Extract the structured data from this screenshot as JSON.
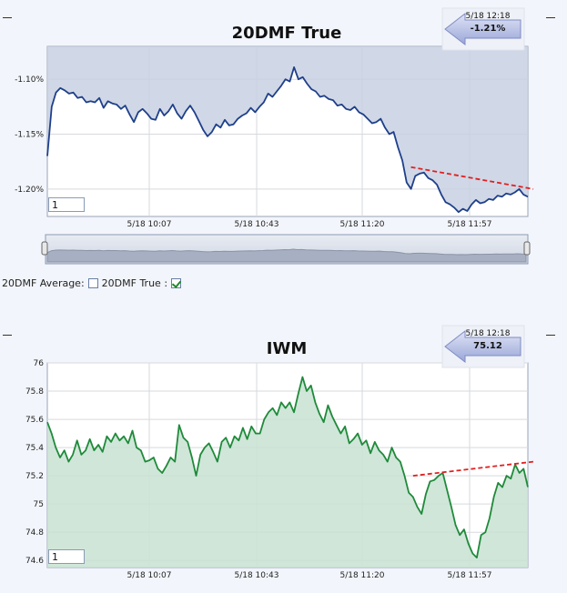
{
  "legend": {
    "average_label": "20DMF Average:",
    "average_checked": false,
    "true_label": "20DMF True :",
    "true_checked": true
  },
  "chart_data": [
    {
      "type": "area",
      "title": "20DMF True",
      "x_ticks": [
        "5/18 10:07",
        "5/18 10:43",
        "5/18 11:20",
        "5/18 11:57"
      ],
      "y_ticks": [
        "-1.10%",
        "-1.15%",
        "-1.20%"
      ],
      "ylim": [
        -1.225,
        -1.07
      ],
      "callout": {
        "date": "5/18 12:18",
        "value": "-1.21%"
      },
      "zoom_value": "1",
      "colors": {
        "line": "#1e3f8a",
        "fill": "#c8d0e2",
        "trend": "#e02020"
      },
      "series": [
        {
          "values": [
            -1.17,
            -1.125,
            -1.112,
            -1.108,
            -1.11,
            -1.113,
            -1.112,
            -1.117,
            -1.116,
            -1.121,
            -1.12,
            -1.121,
            -1.117,
            -1.126,
            -1.12,
            -1.122,
            -1.123,
            -1.127,
            -1.124,
            -1.132,
            -1.139,
            -1.13,
            -1.127,
            -1.131,
            -1.136,
            -1.137,
            -1.127,
            -1.133,
            -1.129,
            -1.123,
            -1.131,
            -1.136,
            -1.129,
            -1.124,
            -1.13,
            -1.138,
            -1.146,
            -1.152,
            -1.148,
            -1.141,
            -1.144,
            -1.137,
            -1.142,
            -1.141,
            -1.136,
            -1.133,
            -1.131,
            -1.126,
            -1.13,
            -1.125,
            -1.121,
            -1.113,
            -1.116,
            -1.111,
            -1.106,
            -1.1,
            -1.102,
            -1.089,
            -1.1,
            -1.098,
            -1.104,
            -1.109,
            -1.111,
            -1.116,
            -1.115,
            -1.118,
            -1.119,
            -1.124,
            -1.123,
            -1.127,
            -1.128,
            -1.125,
            -1.13,
            -1.132,
            -1.136,
            -1.14,
            -1.139,
            -1.136,
            -1.144,
            -1.15,
            -1.148,
            -1.162,
            -1.174,
            -1.194,
            -1.2,
            -1.188,
            -1.186,
            -1.185,
            -1.19,
            -1.192,
            -1.196,
            -1.205,
            -1.212,
            -1.214,
            -1.217,
            -1.221,
            -1.218,
            -1.22,
            -1.214,
            -1.21,
            -1.213,
            -1.212,
            -1.209,
            -1.21,
            -1.206,
            -1.207,
            -1.204,
            -1.205,
            -1.203,
            -1.2,
            -1.205,
            -1.207
          ]
        }
      ],
      "trendline": {
        "start": -1.18,
        "end": -1.2
      }
    },
    {
      "type": "area",
      "title": "IWM",
      "x_ticks": [
        "5/18 10:07",
        "5/18 10:43",
        "5/18 11:20",
        "5/18 11:57"
      ],
      "y_ticks": [
        "76",
        "75.8",
        "75.6",
        "75.4",
        "75.2",
        "75",
        "74.8",
        "74.6"
      ],
      "ylim": [
        74.55,
        76
      ],
      "callout": {
        "date": "5/18 12:18",
        "value": "75.12"
      },
      "zoom_value": "1",
      "colors": {
        "line": "#1f8a3a",
        "fill": "#c8e2d2",
        "trend": "#e02020"
      },
      "series": [
        {
          "values": [
            75.58,
            75.5,
            75.4,
            75.33,
            75.38,
            75.3,
            75.35,
            75.45,
            75.35,
            75.38,
            75.46,
            75.38,
            75.42,
            75.37,
            75.48,
            75.44,
            75.5,
            75.45,
            75.48,
            75.43,
            75.52,
            75.4,
            75.38,
            75.3,
            75.31,
            75.33,
            75.25,
            75.22,
            75.27,
            75.33,
            75.3,
            75.56,
            75.47,
            75.44,
            75.33,
            75.2,
            75.35,
            75.4,
            75.43,
            75.37,
            75.3,
            75.44,
            75.47,
            75.4,
            75.48,
            75.45,
            75.54,
            75.46,
            75.55,
            75.5,
            75.5,
            75.6,
            75.65,
            75.68,
            75.63,
            75.72,
            75.68,
            75.72,
            75.65,
            75.78,
            75.9,
            75.8,
            75.84,
            75.72,
            75.64,
            75.58,
            75.7,
            75.62,
            75.56,
            75.5,
            75.55,
            75.43,
            75.46,
            75.5,
            75.42,
            75.45,
            75.36,
            75.44,
            75.38,
            75.35,
            75.3,
            75.4,
            75.33,
            75.3,
            75.2,
            75.08,
            75.05,
            74.98,
            74.93,
            75.07,
            75.16,
            75.17,
            75.2,
            75.22,
            75.1,
            74.98,
            74.85,
            74.78,
            74.82,
            74.72,
            74.65,
            74.62,
            74.78,
            74.8,
            74.9,
            75.05,
            75.15,
            75.12,
            75.2,
            75.18,
            75.28,
            75.22,
            75.25,
            75.12
          ]
        }
      ],
      "trendline": {
        "start": 75.2,
        "end": 75.3
      }
    }
  ]
}
